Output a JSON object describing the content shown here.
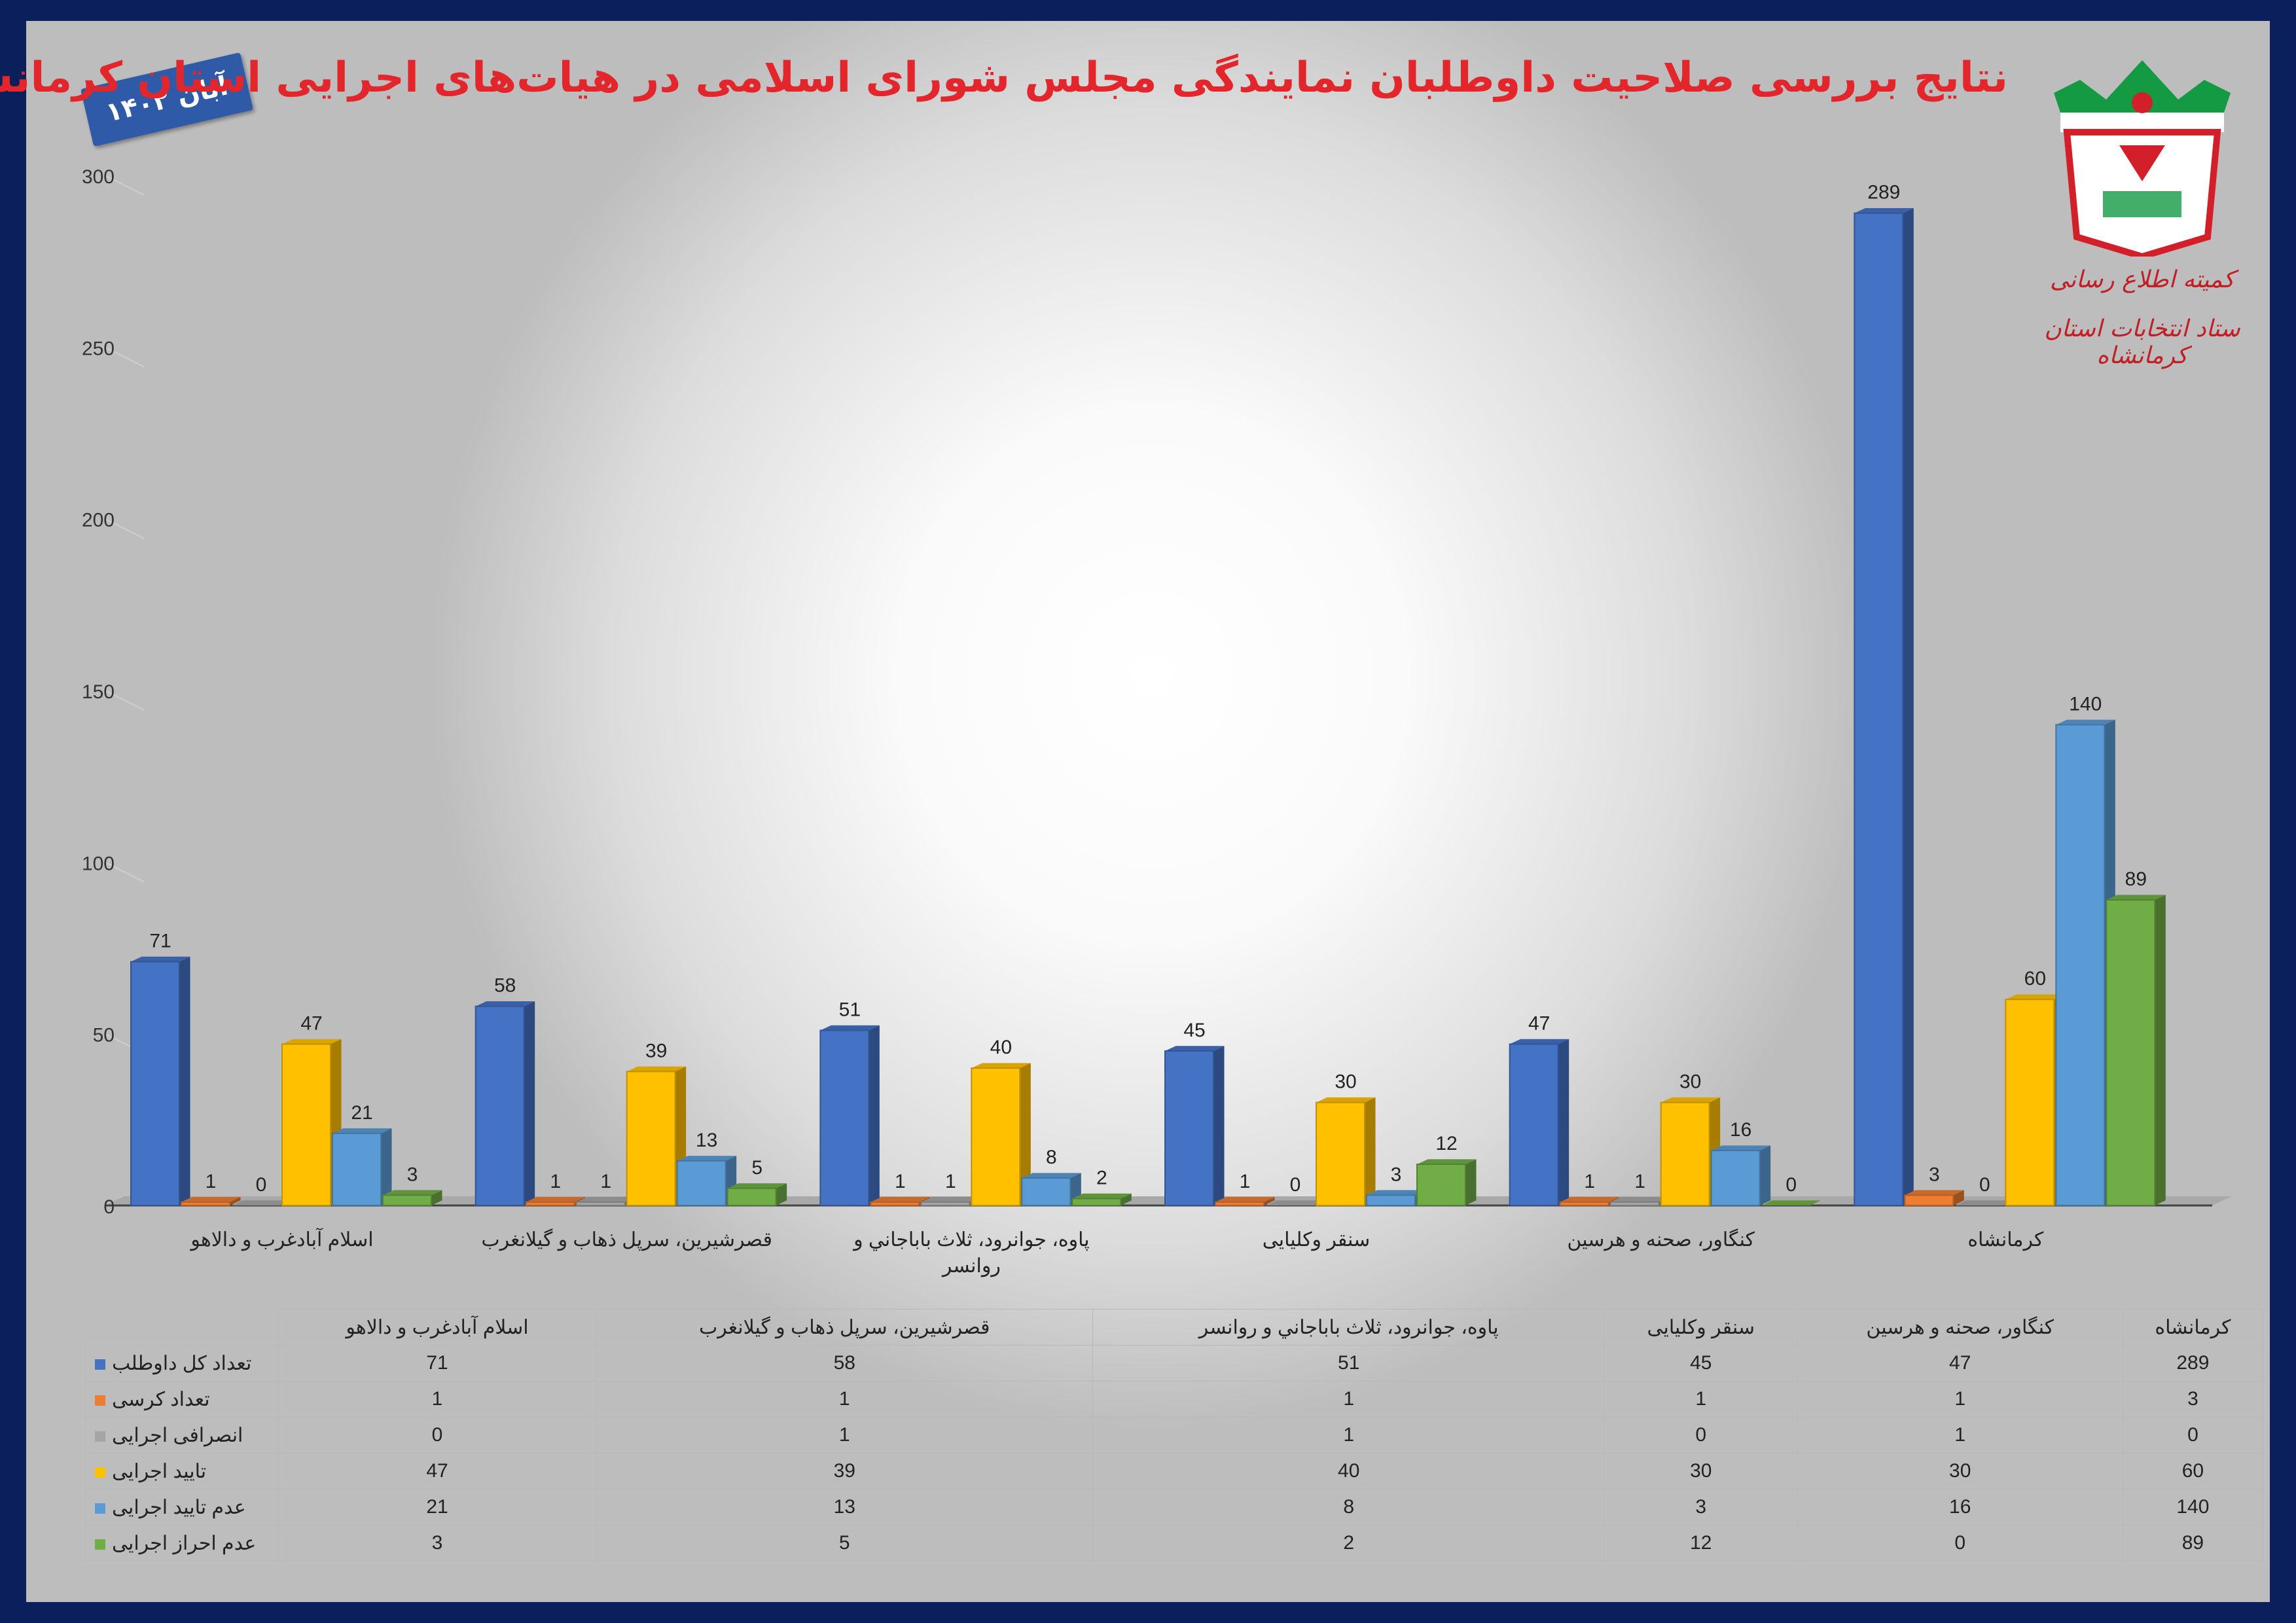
{
  "header": {
    "title": "نتایج بررسی صلاحیت داوطلبان نمایندگی مجلس شورای اسلامی در هیات‌های اجرایی استان کرمانشاه",
    "date_badge": "آبان ۱۴۰۲"
  },
  "logo": {
    "caption_line1": "کمیته اطلاع رسانی",
    "caption_line2": "ستاد انتخابات استان کرمانشاه"
  },
  "chart_data": {
    "type": "bar",
    "categories": [
      "اسلام آبادغرب و دالاهو",
      "قصرشیرین، سرپل ذهاب و گیلانغرب",
      "پاوه، جوانرود، ثلاث باباجاني و روانسر",
      "سنقر وکلیایی",
      "کنگاور، صحنه و هرسین",
      "کرمانشاه"
    ],
    "series": [
      {
        "name": "تعداد کل داوطلب",
        "color": "#4472c4",
        "values": [
          71,
          58,
          51,
          45,
          47,
          289
        ]
      },
      {
        "name": "تعداد کرسی",
        "color": "#ed7d31",
        "values": [
          1,
          1,
          1,
          1,
          1,
          3
        ]
      },
      {
        "name": "انصرافی اجرایی",
        "color": "#a5a5a5",
        "values": [
          0,
          1,
          1,
          0,
          1,
          0
        ]
      },
      {
        "name": "تایید اجرایی",
        "color": "#ffc000",
        "values": [
          47,
          39,
          40,
          30,
          30,
          60
        ]
      },
      {
        "name": "عدم تایید اجرایی",
        "color": "#5b9bd5",
        "values": [
          21,
          13,
          8,
          3,
          16,
          140
        ]
      },
      {
        "name": "عدم احراز اجرایی",
        "color": "#70ad47",
        "values": [
          3,
          5,
          2,
          12,
          0,
          89
        ]
      }
    ],
    "ylim": [
      0,
      300
    ],
    "yticks": [
      0,
      50,
      100,
      150,
      200,
      250,
      300
    ],
    "legend": "data table below chart"
  }
}
